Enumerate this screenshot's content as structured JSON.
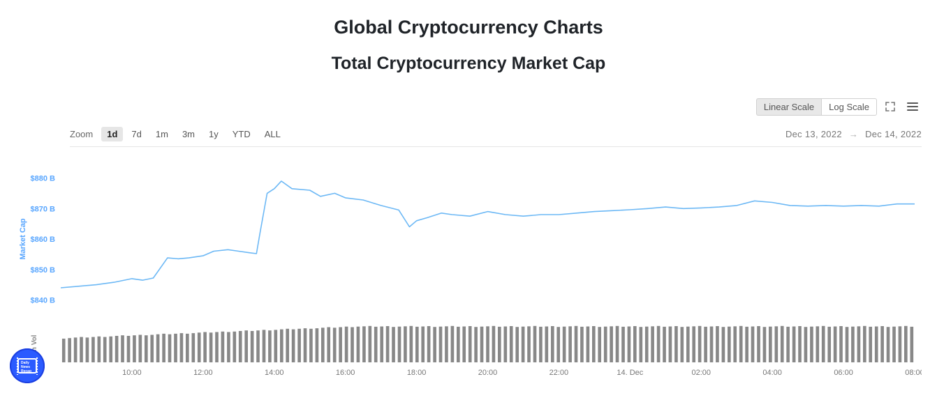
{
  "titles": {
    "main": "Global Cryptocurrency Charts",
    "sub": "Total Cryptocurrency Market Cap"
  },
  "scale_toggle": {
    "options": [
      "Linear Scale",
      "Log Scale"
    ],
    "active_index": 0,
    "bg_active": "#e8e8e8",
    "bg": "#ffffff",
    "border": "#d0d0d0",
    "font_size": 13
  },
  "icons": {
    "fullscreen": "fullscreen-icon",
    "menu": "menu-icon"
  },
  "zoom": {
    "label": "Zoom",
    "options": [
      "1d",
      "7d",
      "1m",
      "3m",
      "1y",
      "YTD",
      "ALL"
    ],
    "active_index": 0,
    "active_bg": "#e6e6e6"
  },
  "date_range": {
    "from": "Dec 13, 2022",
    "to": "Dec 14, 2022",
    "arrow": "→"
  },
  "chart": {
    "type": "line",
    "y_axis": {
      "title": "Market Cap",
      "ticks": [
        840,
        850,
        860,
        870,
        880
      ],
      "tick_labels": [
        "$840 B",
        "$850 B",
        "$860 B",
        "$870 B",
        "$880 B"
      ],
      "ylim": [
        836,
        884
      ],
      "color": "#58a6ff",
      "font_size": 11
    },
    "x_axis": {
      "tick_labels": [
        "10:00",
        "12:00",
        "14:00",
        "16:00",
        "18:00",
        "20:00",
        "22:00",
        "14. Dec",
        "02:00",
        "04:00",
        "06:00",
        "08:00"
      ],
      "tick_positions_hours": [
        10,
        12,
        14,
        16,
        18,
        20,
        22,
        24,
        26,
        28,
        30,
        32
      ],
      "xlim_hours": [
        8,
        32
      ],
      "font_size": 11,
      "color": "#777777"
    },
    "line_color": "#6cb8f5",
    "line_width": 1.6,
    "background_color": "#ffffff",
    "grid_color": "#f0f0f0",
    "series_hours": [
      8.0,
      8.5,
      9.0,
      9.5,
      10.0,
      10.3,
      10.6,
      11.0,
      11.3,
      11.6,
      12.0,
      12.3,
      12.7,
      13.0,
      13.3,
      13.5,
      13.6,
      13.8,
      14.0,
      14.2,
      14.5,
      15.0,
      15.3,
      15.7,
      16.0,
      16.5,
      17.0,
      17.5,
      17.8,
      18.0,
      18.3,
      18.7,
      19.0,
      19.5,
      20.0,
      20.5,
      21.0,
      21.5,
      22.0,
      22.5,
      23.0,
      23.5,
      24.0,
      24.5,
      25.0,
      25.5,
      26.0,
      26.5,
      27.0,
      27.5,
      28.0,
      28.5,
      29.0,
      29.5,
      30.0,
      30.5,
      31.0,
      31.5,
      32.0
    ],
    "series_values": [
      844.0,
      844.5,
      845.0,
      845.8,
      847.0,
      846.5,
      847.2,
      853.8,
      853.5,
      853.8,
      854.5,
      856.0,
      856.5,
      856.0,
      855.5,
      855.2,
      862.0,
      875.0,
      876.5,
      879.0,
      876.5,
      876.0,
      874.0,
      875.0,
      873.5,
      872.8,
      871.0,
      869.5,
      864.0,
      866.0,
      867.0,
      868.5,
      868.0,
      867.5,
      869.0,
      868.0,
      867.5,
      868.0,
      868.0,
      868.5,
      869.0,
      869.3,
      869.6,
      870.0,
      870.5,
      870.0,
      870.2,
      870.5,
      871.0,
      872.5,
      872.0,
      871.0,
      870.8,
      871.0,
      870.8,
      871.0,
      870.8,
      871.5,
      871.5
    ]
  },
  "volume": {
    "title": "24h Vol",
    "bar_color": "#888888",
    "count": 145,
    "base": 0.62,
    "growth_until_index": 50,
    "max_ratio": 0.92
  },
  "badge": {
    "text": "Daily News Recap",
    "bg": "#2b5bff"
  }
}
